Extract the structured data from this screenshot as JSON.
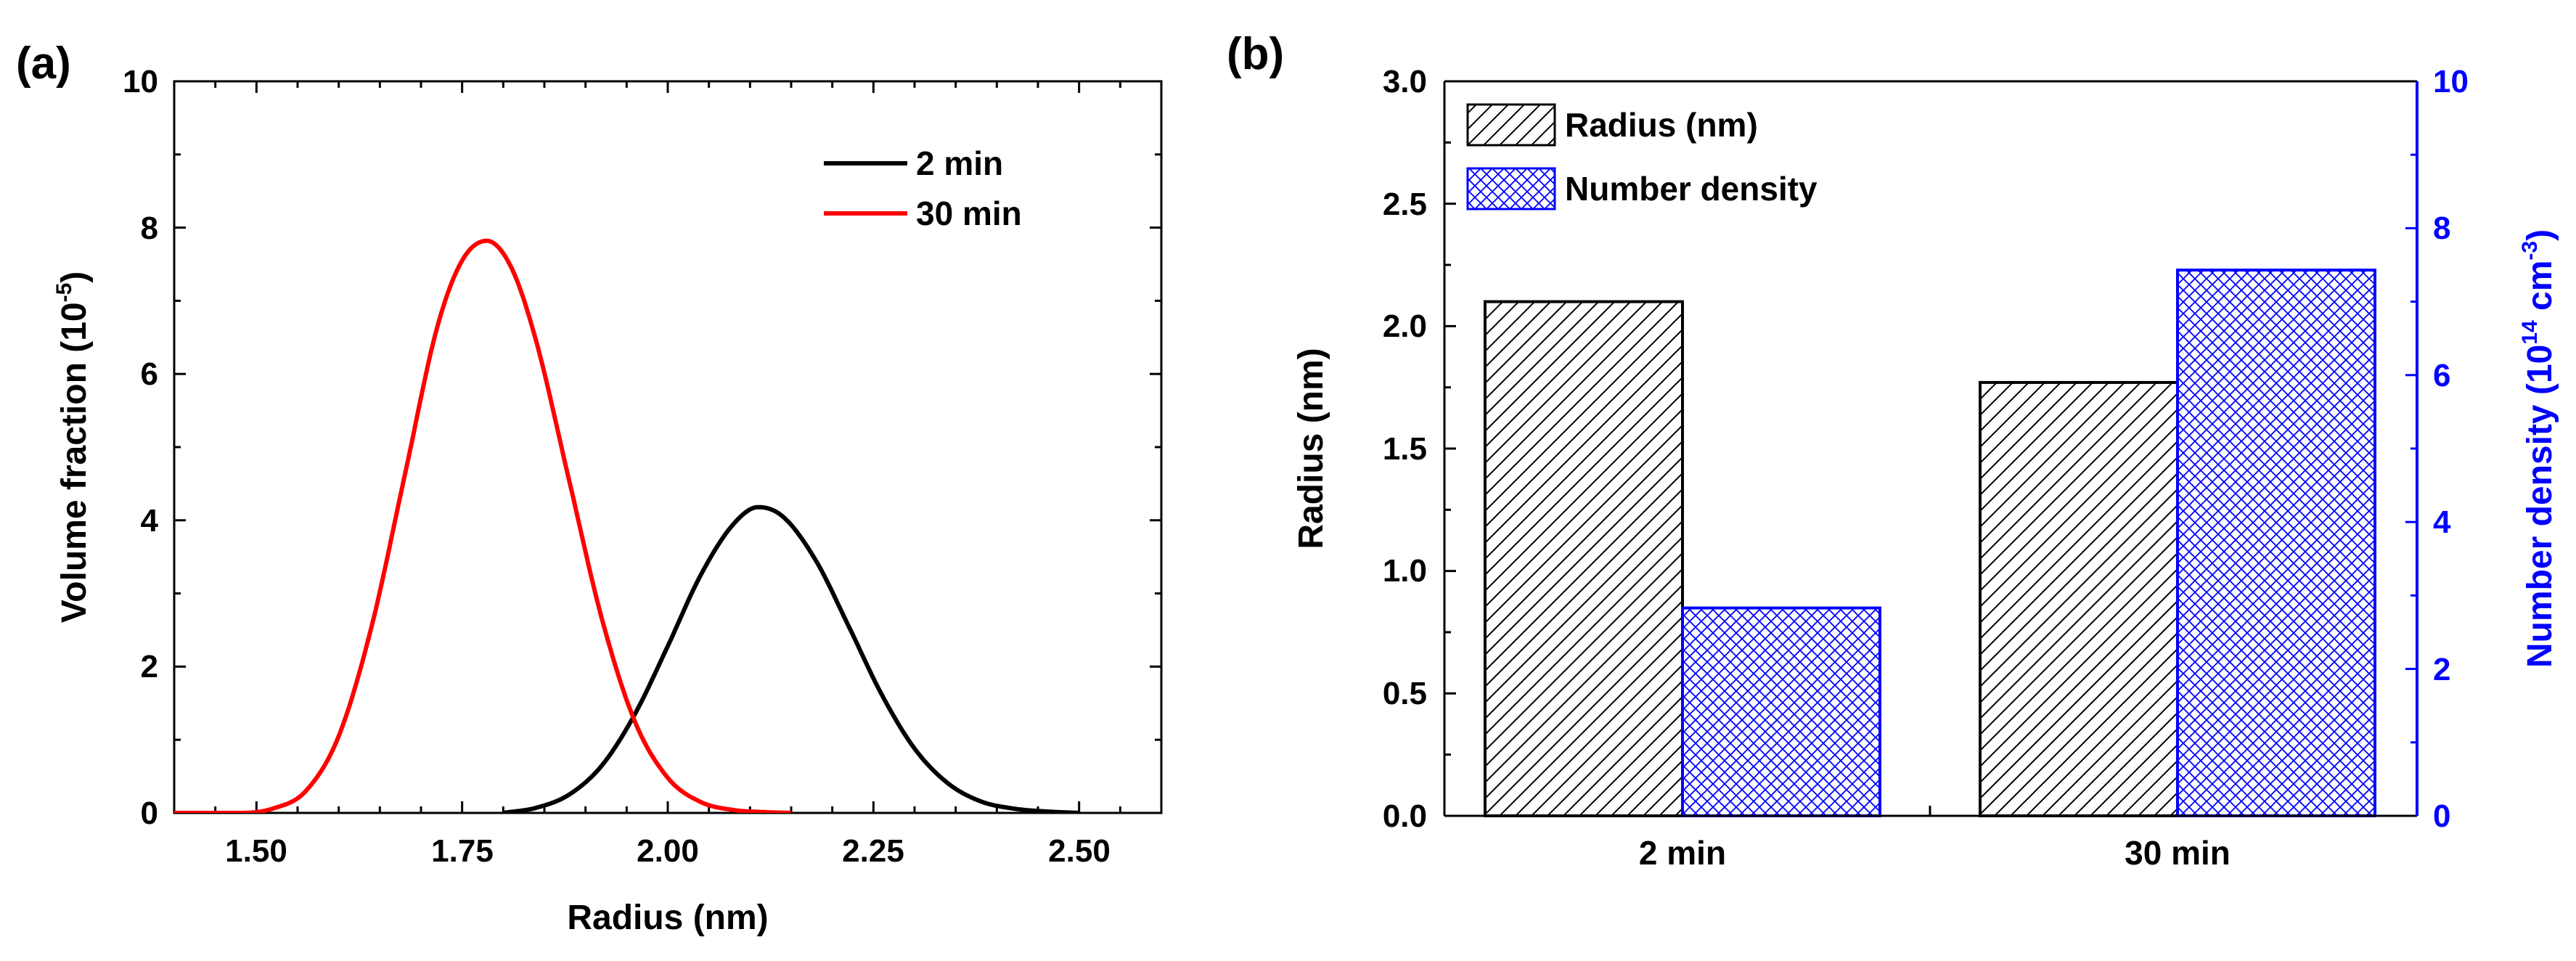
{
  "chart_data": [
    {
      "type": "line",
      "panel_label": "(a)",
      "title": "",
      "xlabel": "Radius (nm)",
      "ylabel": "Volume fraction (10",
      "ylabel_sup": "-5",
      "ylabel_end": ")",
      "xlim": [
        1.4,
        2.6
      ],
      "ylim": [
        0,
        10
      ],
      "x_ticks": [
        "1.50",
        "1.75",
        "2.00",
        "2.25",
        "2.50"
      ],
      "y_ticks": [
        "0",
        "2",
        "4",
        "6",
        "8",
        "10"
      ],
      "legend_position": "top-right",
      "series": [
        {
          "name": "2 min",
          "color": "#000000",
          "x": [
            1.8,
            1.84,
            1.88,
            1.92,
            1.96,
            2.0,
            2.04,
            2.08,
            2.11,
            2.14,
            2.18,
            2.22,
            2.26,
            2.3,
            2.34,
            2.38,
            2.42,
            2.46,
            2.5
          ],
          "values": [
            0.0,
            0.07,
            0.25,
            0.65,
            1.35,
            2.28,
            3.25,
            3.95,
            4.18,
            4.05,
            3.45,
            2.55,
            1.62,
            0.88,
            0.41,
            0.16,
            0.06,
            0.02,
            0.0
          ]
        },
        {
          "name": "30 min",
          "color": "#ff0000",
          "x": [
            1.4,
            1.48,
            1.52,
            1.56,
            1.6,
            1.64,
            1.68,
            1.72,
            1.75,
            1.78,
            1.81,
            1.84,
            1.88,
            1.92,
            1.96,
            2.0,
            2.04,
            2.08,
            2.12,
            2.15
          ],
          "values": [
            0.0,
            0.0,
            0.06,
            0.3,
            1.05,
            2.55,
            4.6,
            6.65,
            7.55,
            7.82,
            7.45,
            6.45,
            4.55,
            2.65,
            1.25,
            0.48,
            0.15,
            0.04,
            0.01,
            0.0
          ]
        }
      ]
    },
    {
      "type": "bar",
      "panel_label": "(b)",
      "title": "",
      "xlabel": "",
      "categories": [
        "2 min",
        "30 min"
      ],
      "ylabel": "Radius (nm)",
      "ylim": [
        0,
        3.0
      ],
      "y_ticks": [
        "0.0",
        "0.5",
        "1.0",
        "1.5",
        "2.0",
        "2.5",
        "3.0"
      ],
      "y2label": "Number density (10",
      "y2label_sup1": "14",
      "y2label_mid": " cm",
      "y2label_sup2": "-3",
      "y2label_end": ")",
      "y2lim": [
        0,
        10
      ],
      "y2_ticks": [
        "0",
        "2",
        "4",
        "6",
        "8",
        "10"
      ],
      "y2_color": "#0000ff",
      "legend_position": "top-left",
      "series": [
        {
          "name": "Radius (nm)",
          "axis": "left",
          "color": "#000000",
          "pattern": "diagonal-hatch",
          "values": [
            2.1,
            1.77
          ]
        },
        {
          "name": "Number density",
          "axis": "right",
          "color": "#0000ff",
          "pattern": "cross-hatch",
          "values": [
            2.83,
            7.43
          ]
        }
      ]
    }
  ]
}
